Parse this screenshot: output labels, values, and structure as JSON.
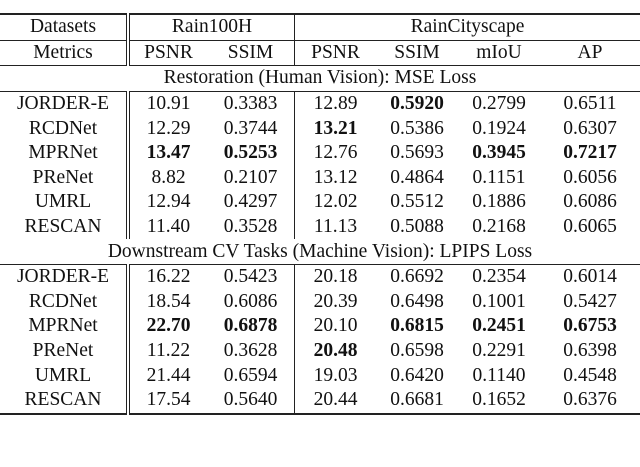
{
  "header": {
    "datasets_label": "Datasets",
    "rain100h": "Rain100H",
    "raincityscape": "RainCityscape",
    "metrics_label": "Metrics",
    "metrics": [
      "PSNR",
      "SSIM",
      "PSNR",
      "SSIM",
      "mIoU",
      "AP"
    ]
  },
  "sections": [
    {
      "title": "Restoration (Human Vision): MSE Loss",
      "rows": [
        {
          "method": "JORDER-E",
          "cells": [
            {
              "v": "10.91"
            },
            {
              "v": "0.3383"
            },
            {
              "v": "12.89"
            },
            {
              "v": "0.5920",
              "bold": true
            },
            {
              "v": "0.2799"
            },
            {
              "v": "0.6511"
            }
          ]
        },
        {
          "method": "RCDNet",
          "cells": [
            {
              "v": "12.29"
            },
            {
              "v": "0.3744"
            },
            {
              "v": "13.21",
              "bold": true
            },
            {
              "v": "0.5386"
            },
            {
              "v": "0.1924"
            },
            {
              "v": "0.6307"
            }
          ]
        },
        {
          "method": "MPRNet",
          "cells": [
            {
              "v": "13.47",
              "bold": true
            },
            {
              "v": "0.5253",
              "bold": true
            },
            {
              "v": "12.76"
            },
            {
              "v": "0.5693"
            },
            {
              "v": "0.3945",
              "bold": true
            },
            {
              "v": "0.7217",
              "bold": true
            }
          ]
        },
        {
          "method": "PReNet",
          "cells": [
            {
              "v": "8.82"
            },
            {
              "v": "0.2107"
            },
            {
              "v": "13.12"
            },
            {
              "v": "0.4864"
            },
            {
              "v": "0.1151"
            },
            {
              "v": "0.6056"
            }
          ]
        },
        {
          "method": "UMRL",
          "cells": [
            {
              "v": "12.94"
            },
            {
              "v": "0.4297"
            },
            {
              "v": "12.02"
            },
            {
              "v": "0.5512"
            },
            {
              "v": "0.1886"
            },
            {
              "v": "0.6086"
            }
          ]
        },
        {
          "method": "RESCAN",
          "cells": [
            {
              "v": "11.40"
            },
            {
              "v": "0.3528"
            },
            {
              "v": "11.13"
            },
            {
              "v": "0.5088"
            },
            {
              "v": "0.2168"
            },
            {
              "v": "0.6065"
            }
          ]
        }
      ]
    },
    {
      "title": "Downstream CV Tasks (Machine Vision): LPIPS Loss",
      "rows": [
        {
          "method": "JORDER-E",
          "cells": [
            {
              "v": "16.22"
            },
            {
              "v": "0.5423"
            },
            {
              "v": "20.18"
            },
            {
              "v": "0.6692"
            },
            {
              "v": "0.2354"
            },
            {
              "v": "0.6014"
            }
          ]
        },
        {
          "method": "RCDNet",
          "cells": [
            {
              "v": "18.54"
            },
            {
              "v": "0.6086"
            },
            {
              "v": "20.39"
            },
            {
              "v": "0.6498"
            },
            {
              "v": "0.1001"
            },
            {
              "v": "0.5427"
            }
          ]
        },
        {
          "method": "MPRNet",
          "cells": [
            {
              "v": "22.70",
              "bold": true
            },
            {
              "v": "0.6878",
              "bold": true
            },
            {
              "v": "20.10"
            },
            {
              "v": "0.6815",
              "bold": true
            },
            {
              "v": "0.2451",
              "bold": true
            },
            {
              "v": "0.6753",
              "bold": true
            }
          ]
        },
        {
          "method": "PReNet",
          "cells": [
            {
              "v": "11.22"
            },
            {
              "v": "0.3628"
            },
            {
              "v": "20.48",
              "bold": true
            },
            {
              "v": "0.6598"
            },
            {
              "v": "0.2291"
            },
            {
              "v": "0.6398"
            }
          ]
        },
        {
          "method": "UMRL",
          "cells": [
            {
              "v": "21.44"
            },
            {
              "v": "0.6594"
            },
            {
              "v": "19.03"
            },
            {
              "v": "0.6420"
            },
            {
              "v": "0.1140"
            },
            {
              "v": "0.4548"
            }
          ]
        },
        {
          "method": "RESCAN",
          "cells": [
            {
              "v": "17.54"
            },
            {
              "v": "0.5640"
            },
            {
              "v": "20.44"
            },
            {
              "v": "0.6681"
            },
            {
              "v": "0.1652"
            },
            {
              "v": "0.6376"
            }
          ]
        }
      ]
    }
  ]
}
